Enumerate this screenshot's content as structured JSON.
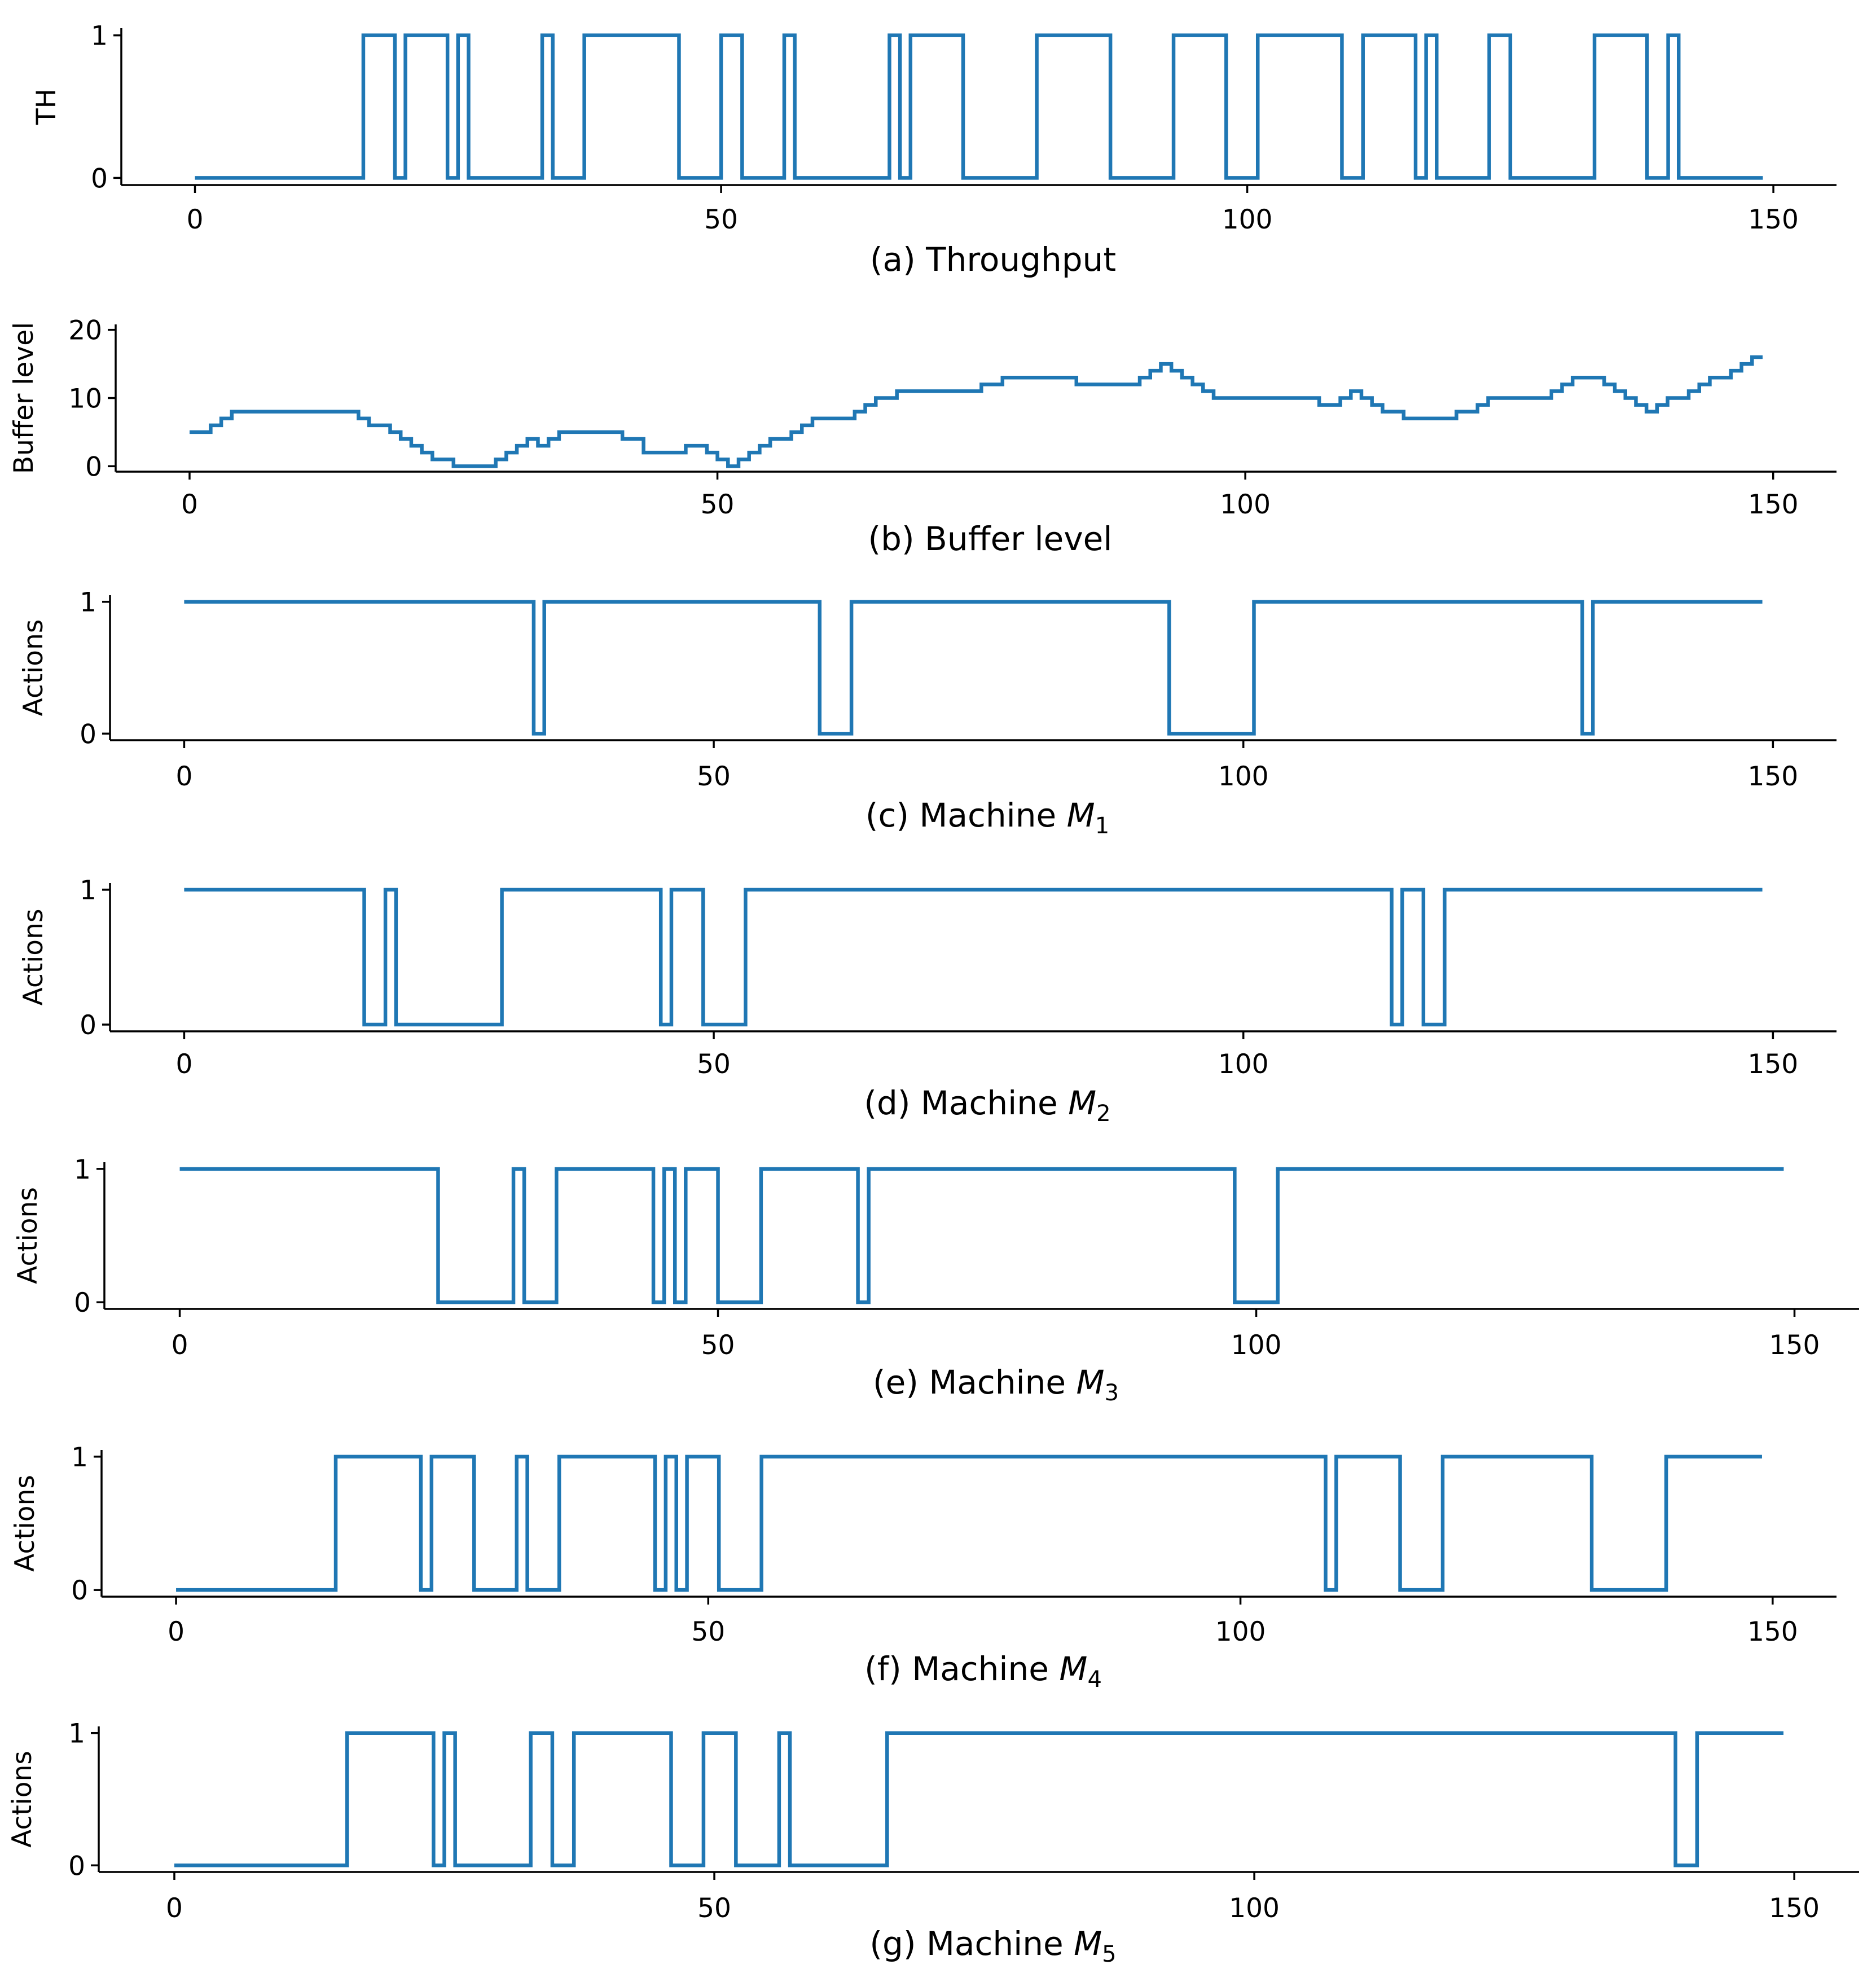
{
  "colors": {
    "series": "#1f77b4",
    "axis": "#000000"
  },
  "chart_data": [
    {
      "type": "line",
      "drawstyle": "steps-post",
      "title": "",
      "caption": "(a) Throughput",
      "caption_prefix": "(a) Throughput",
      "caption_math": "",
      "caption_sub": "",
      "xlabel": "",
      "ylabel": "TH",
      "xlim": [
        -7,
        156
      ],
      "ylim": [
        -0.05,
        1.05
      ],
      "xticks": [
        0,
        50,
        100,
        150
      ],
      "xtick_labels": [
        "0",
        "50",
        "100",
        "150"
      ],
      "yticks": [
        0,
        1
      ],
      "ytick_labels": [
        "0",
        "1"
      ],
      "grid": false,
      "x_end": 149,
      "steps": [
        [
          0,
          0
        ],
        [
          16,
          1
        ],
        [
          19,
          0
        ],
        [
          20,
          1
        ],
        [
          24,
          0
        ],
        [
          25,
          1
        ],
        [
          26,
          0
        ],
        [
          33,
          1
        ],
        [
          34,
          0
        ],
        [
          37,
          1
        ],
        [
          46,
          0
        ],
        [
          50,
          1
        ],
        [
          52,
          0
        ],
        [
          56,
          1
        ],
        [
          57,
          0
        ],
        [
          66,
          1
        ],
        [
          67,
          0
        ],
        [
          68,
          1
        ],
        [
          73,
          0
        ],
        [
          80,
          1
        ],
        [
          87,
          0
        ],
        [
          93,
          1
        ],
        [
          98,
          0
        ],
        [
          101,
          1
        ],
        [
          109,
          0
        ],
        [
          111,
          1
        ],
        [
          116,
          0
        ],
        [
          117,
          1
        ],
        [
          118,
          0
        ],
        [
          123,
          1
        ],
        [
          125,
          0
        ],
        [
          133,
          1
        ],
        [
          138,
          0
        ],
        [
          140,
          1
        ],
        [
          141,
          0
        ]
      ]
    },
    {
      "type": "line",
      "drawstyle": "steps-post",
      "title": "",
      "caption": "(b) Buffer level",
      "caption_prefix": "(b) Buffer level",
      "caption_math": "",
      "caption_sub": "",
      "xlabel": "",
      "ylabel": "Buffer level",
      "xlim": [
        -7,
        156
      ],
      "ylim": [
        -0.8,
        20.8
      ],
      "xticks": [
        0,
        50,
        100,
        150
      ],
      "xtick_labels": [
        "0",
        "50",
        "100",
        "150"
      ],
      "yticks": [
        0,
        10,
        20
      ],
      "ytick_labels": [
        "0",
        "10",
        "20"
      ],
      "grid": false,
      "x_end": 149,
      "steps": [
        [
          0,
          5
        ],
        [
          2,
          6
        ],
        [
          3,
          7
        ],
        [
          4,
          8
        ],
        [
          16,
          7
        ],
        [
          17,
          6
        ],
        [
          19,
          5
        ],
        [
          20,
          4
        ],
        [
          21,
          3
        ],
        [
          22,
          2
        ],
        [
          23,
          1
        ],
        [
          25,
          0
        ],
        [
          29,
          1
        ],
        [
          30,
          2
        ],
        [
          31,
          3
        ],
        [
          32,
          4
        ],
        [
          33,
          3
        ],
        [
          34,
          4
        ],
        [
          35,
          5
        ],
        [
          41,
          4
        ],
        [
          43,
          2
        ],
        [
          47,
          3
        ],
        [
          49,
          2
        ],
        [
          50,
          1
        ],
        [
          51,
          0
        ],
        [
          52,
          1
        ],
        [
          53,
          2
        ],
        [
          54,
          3
        ],
        [
          55,
          4
        ],
        [
          57,
          5
        ],
        [
          58,
          6
        ],
        [
          59,
          7
        ],
        [
          63,
          8
        ],
        [
          64,
          9
        ],
        [
          65,
          10
        ],
        [
          67,
          11
        ],
        [
          75,
          12
        ],
        [
          77,
          13
        ],
        [
          84,
          12
        ],
        [
          90,
          13
        ],
        [
          91,
          14
        ],
        [
          92,
          15
        ],
        [
          93,
          14
        ],
        [
          94,
          13
        ],
        [
          95,
          12
        ],
        [
          96,
          11
        ],
        [
          97,
          10
        ],
        [
          107,
          9
        ],
        [
          109,
          10
        ],
        [
          110,
          11
        ],
        [
          111,
          10
        ],
        [
          112,
          9
        ],
        [
          113,
          8
        ],
        [
          115,
          7
        ],
        [
          120,
          8
        ],
        [
          122,
          9
        ],
        [
          123,
          10
        ],
        [
          129,
          11
        ],
        [
          130,
          12
        ],
        [
          131,
          13
        ],
        [
          134,
          12
        ],
        [
          135,
          11
        ],
        [
          136,
          10
        ],
        [
          137,
          9
        ],
        [
          138,
          8
        ],
        [
          139,
          9
        ],
        [
          140,
          10
        ],
        [
          142,
          11
        ],
        [
          143,
          12
        ],
        [
          144,
          13
        ],
        [
          146,
          14
        ],
        [
          147,
          15
        ],
        [
          148,
          16
        ]
      ]
    },
    {
      "type": "line",
      "drawstyle": "steps-post",
      "title": "",
      "caption": "(c) Machine M1",
      "caption_prefix": "(c) Machine ",
      "caption_math": "M",
      "caption_sub": "1",
      "xlabel": "",
      "ylabel": "Actions",
      "xlim": [
        -7,
        156
      ],
      "ylim": [
        -0.05,
        1.05
      ],
      "xticks": [
        0,
        50,
        100,
        150
      ],
      "xtick_labels": [
        "0",
        "50",
        "100",
        "150"
      ],
      "yticks": [
        0,
        1
      ],
      "ytick_labels": [
        "0",
        "1"
      ],
      "grid": false,
      "x_end": 149,
      "steps": [
        [
          0,
          1
        ],
        [
          33,
          0
        ],
        [
          34,
          1
        ],
        [
          60,
          0
        ],
        [
          63,
          1
        ],
        [
          93,
          0
        ],
        [
          101,
          1
        ],
        [
          132,
          0
        ],
        [
          133,
          1
        ]
      ]
    },
    {
      "type": "line",
      "drawstyle": "steps-post",
      "title": "",
      "caption": "(d) Machine M2",
      "caption_prefix": "(d) Machine ",
      "caption_math": "M",
      "caption_sub": "2",
      "xlabel": "",
      "ylabel": "Actions",
      "xlim": [
        -7,
        156
      ],
      "ylim": [
        -0.05,
        1.05
      ],
      "xticks": [
        0,
        50,
        100,
        150
      ],
      "xtick_labels": [
        "0",
        "50",
        "100",
        "150"
      ],
      "yticks": [
        0,
        1
      ],
      "ytick_labels": [
        "0",
        "1"
      ],
      "grid": false,
      "x_end": 149,
      "steps": [
        [
          0,
          1
        ],
        [
          17,
          0
        ],
        [
          19,
          1
        ],
        [
          20,
          0
        ],
        [
          30,
          1
        ],
        [
          45,
          0
        ],
        [
          46,
          1
        ],
        [
          49,
          0
        ],
        [
          53,
          1
        ],
        [
          114,
          0
        ],
        [
          115,
          1
        ],
        [
          117,
          0
        ],
        [
          119,
          1
        ]
      ]
    },
    {
      "type": "line",
      "drawstyle": "steps-post",
      "title": "",
      "caption": "(e) Machine M3",
      "caption_prefix": "(e) Machine ",
      "caption_math": "M",
      "caption_sub": "3",
      "xlabel": "",
      "ylabel": "Actions",
      "xlim": [
        -7,
        156
      ],
      "ylim": [
        -0.05,
        1.05
      ],
      "xticks": [
        0,
        50,
        100,
        150
      ],
      "xtick_labels": [
        "0",
        "50",
        "100",
        "150"
      ],
      "yticks": [
        0,
        1
      ],
      "ytick_labels": [
        "0",
        "1"
      ],
      "grid": false,
      "x_end": 149,
      "steps": [
        [
          0,
          1
        ],
        [
          24,
          0
        ],
        [
          31,
          1
        ],
        [
          32,
          0
        ],
        [
          35,
          1
        ],
        [
          44,
          0
        ],
        [
          45,
          1
        ],
        [
          46,
          0
        ],
        [
          47,
          1
        ],
        [
          50,
          0
        ],
        [
          54,
          1
        ],
        [
          63,
          0
        ],
        [
          64,
          1
        ],
        [
          98,
          0
        ],
        [
          102,
          1
        ]
      ]
    },
    {
      "type": "line",
      "drawstyle": "steps-post",
      "title": "",
      "caption": "(f) Machine M4",
      "caption_prefix": "(f) Machine ",
      "caption_math": "M",
      "caption_sub": "4",
      "xlabel": "",
      "ylabel": "Actions",
      "xlim": [
        -7,
        156
      ],
      "ylim": [
        -0.05,
        1.05
      ],
      "xticks": [
        0,
        50,
        100,
        150
      ],
      "xtick_labels": [
        "0",
        "50",
        "100",
        "150"
      ],
      "yticks": [
        0,
        1
      ],
      "ytick_labels": [
        "0",
        "1"
      ],
      "grid": false,
      "x_end": 149,
      "steps": [
        [
          0,
          0
        ],
        [
          15,
          1
        ],
        [
          23,
          0
        ],
        [
          24,
          1
        ],
        [
          28,
          0
        ],
        [
          32,
          1
        ],
        [
          33,
          0
        ],
        [
          36,
          1
        ],
        [
          45,
          0
        ],
        [
          46,
          1
        ],
        [
          47,
          0
        ],
        [
          48,
          1
        ],
        [
          51,
          0
        ],
        [
          55,
          1
        ],
        [
          108,
          0
        ],
        [
          109,
          1
        ],
        [
          115,
          0
        ],
        [
          119,
          1
        ],
        [
          133,
          0
        ],
        [
          140,
          1
        ]
      ]
    },
    {
      "type": "line",
      "drawstyle": "steps-post",
      "title": "",
      "caption": "(g) Machine M5",
      "caption_prefix": "(g) Machine ",
      "caption_math": "M",
      "caption_sub": "5",
      "xlabel": "",
      "ylabel": "Actions",
      "xlim": [
        -7,
        156
      ],
      "ylim": [
        -0.05,
        1.05
      ],
      "xticks": [
        0,
        50,
        100,
        150
      ],
      "xtick_labels": [
        "0",
        "50",
        "100",
        "150"
      ],
      "yticks": [
        0,
        1
      ],
      "ytick_labels": [
        "0",
        "1"
      ],
      "grid": false,
      "x_end": 149,
      "steps": [
        [
          0,
          0
        ],
        [
          16,
          1
        ],
        [
          24,
          0
        ],
        [
          25,
          1
        ],
        [
          26,
          0
        ],
        [
          33,
          1
        ],
        [
          35,
          0
        ],
        [
          37,
          1
        ],
        [
          46,
          0
        ],
        [
          49,
          1
        ],
        [
          52,
          0
        ],
        [
          56,
          1
        ],
        [
          57,
          0
        ],
        [
          66,
          1
        ],
        [
          139,
          0
        ],
        [
          141,
          1
        ]
      ]
    }
  ]
}
